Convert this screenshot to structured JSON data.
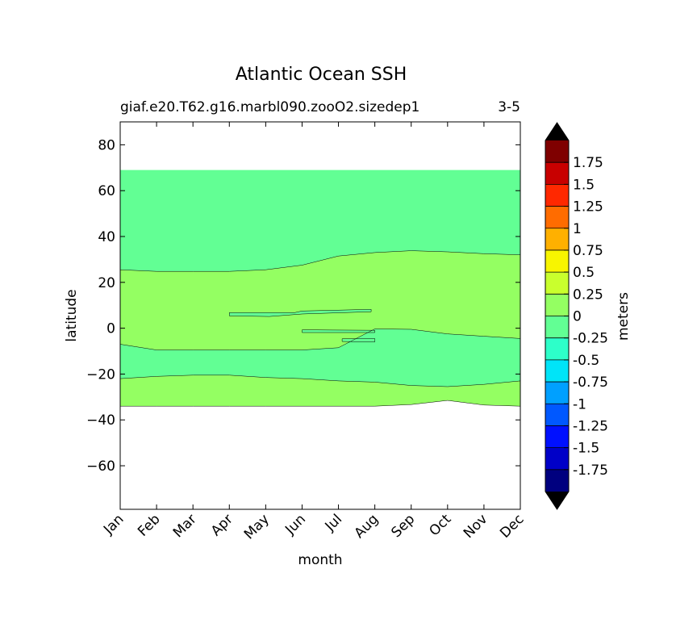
{
  "chart_data": {
    "type": "heatmap",
    "title": "Atlantic Ocean SSH",
    "subtitle_left": "giaf.e20.T62.g16.marbl090.zooO2.sizedep1",
    "subtitle_right": "3-5",
    "xlabel": "month",
    "ylabel": "latitude",
    "x_categories": [
      "Jan",
      "Feb",
      "Mar",
      "Apr",
      "May",
      "Jun",
      "Jul",
      "Aug",
      "Sep",
      "Oct",
      "Nov",
      "Dec"
    ],
    "ylim": [
      -79,
      90
    ],
    "yticks": [
      80,
      60,
      40,
      20,
      0,
      -20,
      -40,
      -60
    ],
    "ytick_labels": [
      "80",
      "60",
      "40",
      "20",
      "0",
      "−20",
      "−40",
      "−60"
    ],
    "data_lat_range": [
      -34,
      69
    ],
    "colorbar": {
      "label": "meters",
      "extend": "both",
      "levels": [
        -2.0,
        -1.75,
        -1.5,
        -1.25,
        -1.0,
        -0.75,
        -0.5,
        -0.25,
        0,
        0.25,
        0.5,
        0.75,
        1.0,
        1.25,
        1.5,
        1.75,
        2.0
      ],
      "tick_labels": [
        "-1.75",
        "-1.5",
        "-1.25",
        "-1",
        "-0.75",
        "-0.5",
        "-0.25",
        "0",
        "0.25",
        "0.5",
        "0.75",
        "1",
        "1.25",
        "1.5",
        "1.75"
      ],
      "colors": [
        "#00007f",
        "#0000c8",
        "#0010ff",
        "#0058ff",
        "#00a0ff",
        "#00e4f8",
        "#2dffc9",
        "#62ff94",
        "#94ff62",
        "#c9ff2d",
        "#f8f500",
        "#ffb000",
        "#ff6c00",
        "#ff2800",
        "#c80000",
        "#7f0000"
      ],
      "under_color": "#000000",
      "over_color": "#000000"
    },
    "bands": [
      {
        "class": "-0.25 to 0",
        "color": "#62ff94"
      },
      {
        "class": "0 to 0.25",
        "color": "#94ff62"
      }
    ],
    "contours": {
      "north_boundary": [
        25.5,
        24.8,
        24.8,
        24.8,
        25.5,
        27.5,
        31.5,
        33,
        33.8,
        33.3,
        32.5,
        32
      ],
      "upper_south_boundary": [
        -7,
        -9.5,
        -9.5,
        -9.5,
        -9.5,
        -9.5,
        -8.5,
        -0.3,
        -0.5,
        -2.5,
        -3.5,
        -4.5
      ],
      "lower_north_boundary": [
        -22,
        -21,
        -20.5,
        -20.5,
        -21.5,
        -22,
        -23,
        -23.5,
        -25,
        -25.5,
        -24.5,
        -23
      ],
      "southern_edge": [
        -34,
        -34,
        -34,
        -34,
        -34,
        -34,
        -34,
        -34,
        -33.3,
        -31.5,
        -33.5,
        -34
      ]
    }
  }
}
